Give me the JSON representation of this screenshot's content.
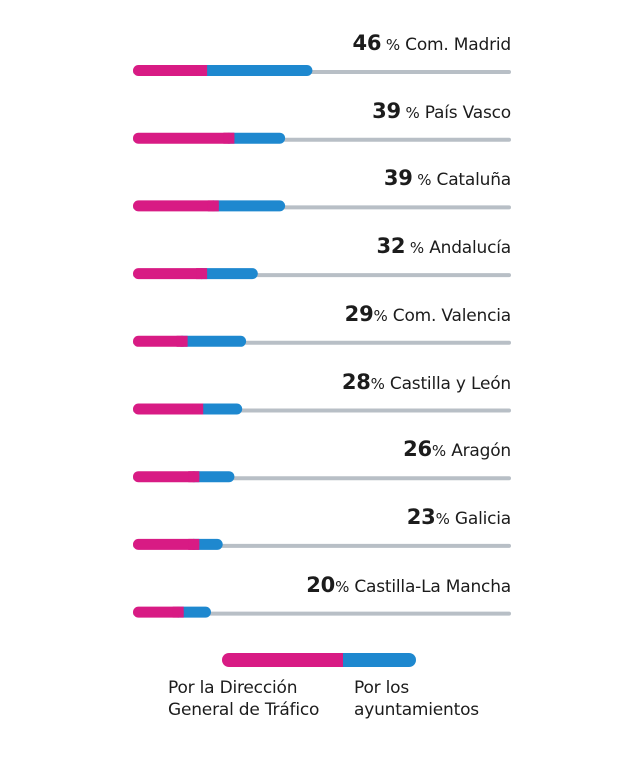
{
  "chart_data": {
    "type": "bar",
    "orientation": "horizontal",
    "stacked": true,
    "categories": [
      "Com. Madrid",
      "País Vasco",
      "Cataluña",
      "Andalucía",
      "Com. Valencia",
      "Castilla y León",
      "Aragón",
      "Galicia",
      "Castilla-La Mancha"
    ],
    "totals": [
      {
        "num": "46",
        "suffix": " %"
      },
      {
        "num": "39",
        "suffix": " %"
      },
      {
        "num": "39",
        "suffix": " %"
      },
      {
        "num": "32",
        "suffix": " %"
      },
      {
        "num": "29",
        "suffix": "%"
      },
      {
        "num": "28",
        "suffix": "%"
      },
      {
        "num": "26",
        "suffix": "%"
      },
      {
        "num": "23",
        "suffix": "%"
      },
      {
        "num": "20",
        "suffix": "%"
      }
    ],
    "total_values": [
      46,
      39,
      39,
      32,
      29,
      28,
      26,
      23,
      20
    ],
    "series": [
      {
        "name": "Por la Dirección General de Tráfico",
        "values": [
          19,
          26,
          22,
          19,
          14,
          18,
          17,
          17,
          13
        ]
      },
      {
        "name": "Por los ayuntamientos",
        "values": [
          27,
          13,
          17,
          13,
          15,
          10,
          9,
          6,
          7
        ]
      }
    ],
    "xlim": [
      0,
      100
    ],
    "grid": false
  },
  "legend": {
    "dgt_line1": "Por la Dirección",
    "dgt_line2": "General de Tráfico",
    "ayto_line1": "Por los",
    "ayto_line2": "ayuntamientos"
  },
  "colors": {
    "dgt": "#d81b84",
    "ayuntamientos": "#1e88cf",
    "track": "#b8bfc6",
    "text": "#1c1c1c"
  }
}
